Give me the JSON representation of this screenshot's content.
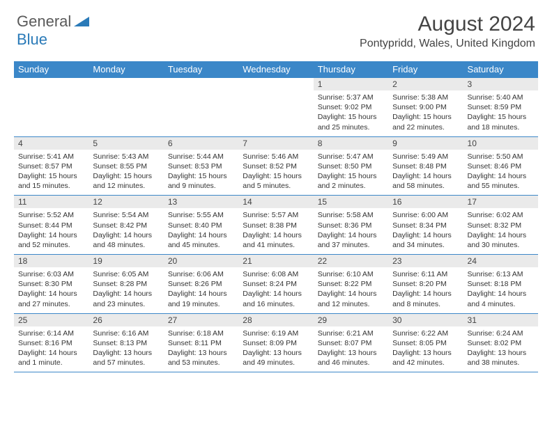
{
  "logo": {
    "general": "General",
    "blue": "Blue"
  },
  "title": "August 2024",
  "location": "Pontypridd, Wales, United Kingdom",
  "colors": {
    "header_bg": "#3b87c8",
    "header_text": "#ffffff",
    "daynum_bg": "#eaeaea",
    "border": "#3b87c8",
    "logo_gray": "#5a5a5a",
    "logo_blue": "#2a7ab8",
    "body_text": "#333333"
  },
  "days_of_week": [
    "Sunday",
    "Monday",
    "Tuesday",
    "Wednesday",
    "Thursday",
    "Friday",
    "Saturday"
  ],
  "weeks": [
    [
      null,
      null,
      null,
      null,
      {
        "num": "1",
        "sunrise": "Sunrise: 5:37 AM",
        "sunset": "Sunset: 9:02 PM",
        "daylight": "Daylight: 15 hours and 25 minutes."
      },
      {
        "num": "2",
        "sunrise": "Sunrise: 5:38 AM",
        "sunset": "Sunset: 9:00 PM",
        "daylight": "Daylight: 15 hours and 22 minutes."
      },
      {
        "num": "3",
        "sunrise": "Sunrise: 5:40 AM",
        "sunset": "Sunset: 8:59 PM",
        "daylight": "Daylight: 15 hours and 18 minutes."
      }
    ],
    [
      {
        "num": "4",
        "sunrise": "Sunrise: 5:41 AM",
        "sunset": "Sunset: 8:57 PM",
        "daylight": "Daylight: 15 hours and 15 minutes."
      },
      {
        "num": "5",
        "sunrise": "Sunrise: 5:43 AM",
        "sunset": "Sunset: 8:55 PM",
        "daylight": "Daylight: 15 hours and 12 minutes."
      },
      {
        "num": "6",
        "sunrise": "Sunrise: 5:44 AM",
        "sunset": "Sunset: 8:53 PM",
        "daylight": "Daylight: 15 hours and 9 minutes."
      },
      {
        "num": "7",
        "sunrise": "Sunrise: 5:46 AM",
        "sunset": "Sunset: 8:52 PM",
        "daylight": "Daylight: 15 hours and 5 minutes."
      },
      {
        "num": "8",
        "sunrise": "Sunrise: 5:47 AM",
        "sunset": "Sunset: 8:50 PM",
        "daylight": "Daylight: 15 hours and 2 minutes."
      },
      {
        "num": "9",
        "sunrise": "Sunrise: 5:49 AM",
        "sunset": "Sunset: 8:48 PM",
        "daylight": "Daylight: 14 hours and 58 minutes."
      },
      {
        "num": "10",
        "sunrise": "Sunrise: 5:50 AM",
        "sunset": "Sunset: 8:46 PM",
        "daylight": "Daylight: 14 hours and 55 minutes."
      }
    ],
    [
      {
        "num": "11",
        "sunrise": "Sunrise: 5:52 AM",
        "sunset": "Sunset: 8:44 PM",
        "daylight": "Daylight: 14 hours and 52 minutes."
      },
      {
        "num": "12",
        "sunrise": "Sunrise: 5:54 AM",
        "sunset": "Sunset: 8:42 PM",
        "daylight": "Daylight: 14 hours and 48 minutes."
      },
      {
        "num": "13",
        "sunrise": "Sunrise: 5:55 AM",
        "sunset": "Sunset: 8:40 PM",
        "daylight": "Daylight: 14 hours and 45 minutes."
      },
      {
        "num": "14",
        "sunrise": "Sunrise: 5:57 AM",
        "sunset": "Sunset: 8:38 PM",
        "daylight": "Daylight: 14 hours and 41 minutes."
      },
      {
        "num": "15",
        "sunrise": "Sunrise: 5:58 AM",
        "sunset": "Sunset: 8:36 PM",
        "daylight": "Daylight: 14 hours and 37 minutes."
      },
      {
        "num": "16",
        "sunrise": "Sunrise: 6:00 AM",
        "sunset": "Sunset: 8:34 PM",
        "daylight": "Daylight: 14 hours and 34 minutes."
      },
      {
        "num": "17",
        "sunrise": "Sunrise: 6:02 AM",
        "sunset": "Sunset: 8:32 PM",
        "daylight": "Daylight: 14 hours and 30 minutes."
      }
    ],
    [
      {
        "num": "18",
        "sunrise": "Sunrise: 6:03 AM",
        "sunset": "Sunset: 8:30 PM",
        "daylight": "Daylight: 14 hours and 27 minutes."
      },
      {
        "num": "19",
        "sunrise": "Sunrise: 6:05 AM",
        "sunset": "Sunset: 8:28 PM",
        "daylight": "Daylight: 14 hours and 23 minutes."
      },
      {
        "num": "20",
        "sunrise": "Sunrise: 6:06 AM",
        "sunset": "Sunset: 8:26 PM",
        "daylight": "Daylight: 14 hours and 19 minutes."
      },
      {
        "num": "21",
        "sunrise": "Sunrise: 6:08 AM",
        "sunset": "Sunset: 8:24 PM",
        "daylight": "Daylight: 14 hours and 16 minutes."
      },
      {
        "num": "22",
        "sunrise": "Sunrise: 6:10 AM",
        "sunset": "Sunset: 8:22 PM",
        "daylight": "Daylight: 14 hours and 12 minutes."
      },
      {
        "num": "23",
        "sunrise": "Sunrise: 6:11 AM",
        "sunset": "Sunset: 8:20 PM",
        "daylight": "Daylight: 14 hours and 8 minutes."
      },
      {
        "num": "24",
        "sunrise": "Sunrise: 6:13 AM",
        "sunset": "Sunset: 8:18 PM",
        "daylight": "Daylight: 14 hours and 4 minutes."
      }
    ],
    [
      {
        "num": "25",
        "sunrise": "Sunrise: 6:14 AM",
        "sunset": "Sunset: 8:16 PM",
        "daylight": "Daylight: 14 hours and 1 minute."
      },
      {
        "num": "26",
        "sunrise": "Sunrise: 6:16 AM",
        "sunset": "Sunset: 8:13 PM",
        "daylight": "Daylight: 13 hours and 57 minutes."
      },
      {
        "num": "27",
        "sunrise": "Sunrise: 6:18 AM",
        "sunset": "Sunset: 8:11 PM",
        "daylight": "Daylight: 13 hours and 53 minutes."
      },
      {
        "num": "28",
        "sunrise": "Sunrise: 6:19 AM",
        "sunset": "Sunset: 8:09 PM",
        "daylight": "Daylight: 13 hours and 49 minutes."
      },
      {
        "num": "29",
        "sunrise": "Sunrise: 6:21 AM",
        "sunset": "Sunset: 8:07 PM",
        "daylight": "Daylight: 13 hours and 46 minutes."
      },
      {
        "num": "30",
        "sunrise": "Sunrise: 6:22 AM",
        "sunset": "Sunset: 8:05 PM",
        "daylight": "Daylight: 13 hours and 42 minutes."
      },
      {
        "num": "31",
        "sunrise": "Sunrise: 6:24 AM",
        "sunset": "Sunset: 8:02 PM",
        "daylight": "Daylight: 13 hours and 38 minutes."
      }
    ]
  ]
}
